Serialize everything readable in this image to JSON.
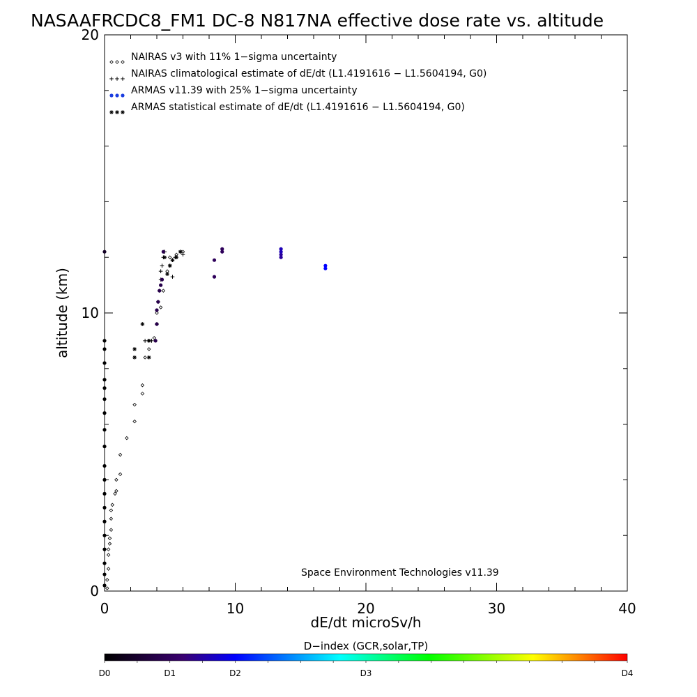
{
  "chart_data": {
    "type": "scatter",
    "title": "NASAAFRCDC8_FM1 DC-8   N817NA effective dose rate vs. altitude",
    "xlabel": "dE/dt microSv/h",
    "ylabel": "altitude (km)",
    "xlim": [
      0,
      40
    ],
    "ylim": [
      0,
      20
    ],
    "x_ticks": [
      "0",
      "10",
      "20",
      "30",
      "40"
    ],
    "y_ticks": [
      "0",
      "10",
      "20"
    ],
    "grid": false,
    "legend_position": "top-left",
    "annotation": "Space Environment Technologies v11.39",
    "colorbar": {
      "title": "D−index (GCR,solar,TP)",
      "labels": [
        "D0",
        "D1",
        "D2",
        "D3",
        "D4"
      ],
      "label_positions": [
        0,
        0.125,
        0.25,
        0.5,
        1.0
      ],
      "colors": [
        "#000000",
        "#3a0070",
        "#0000ff",
        "#00ffff",
        "#00ff00",
        "#ffff00",
        "#ff0000"
      ]
    },
    "series": [
      {
        "name": "NAIRAS v3 with 11% 1−sigma uncertainty",
        "marker": "diamond",
        "color": "#000000",
        "points": [
          [
            0.2,
            0.1
          ],
          [
            0.2,
            0.4
          ],
          [
            0.3,
            0.8
          ],
          [
            0.3,
            1.3
          ],
          [
            0.3,
            1.5
          ],
          [
            0.4,
            1.7
          ],
          [
            0.4,
            1.9
          ],
          [
            0.5,
            2.2
          ],
          [
            0.5,
            2.6
          ],
          [
            0.5,
            2.9
          ],
          [
            0.6,
            3.1
          ],
          [
            0.8,
            3.5
          ],
          [
            0.9,
            3.6
          ],
          [
            0.9,
            4.0
          ],
          [
            1.2,
            4.2
          ],
          [
            1.2,
            4.9
          ],
          [
            1.7,
            5.5
          ],
          [
            2.3,
            6.1
          ],
          [
            2.3,
            6.7
          ],
          [
            2.9,
            7.1
          ],
          [
            2.9,
            7.4
          ],
          [
            3.1,
            8.4
          ],
          [
            3.4,
            8.7
          ],
          [
            3.4,
            9.0
          ],
          [
            3.8,
            9.1
          ],
          [
            4.0,
            10.0
          ],
          [
            4.3,
            10.2
          ],
          [
            4.5,
            10.8
          ],
          [
            4.8,
            11.5
          ],
          [
            5.0,
            12.0
          ],
          [
            5.5,
            12.1
          ],
          [
            6.0,
            12.2
          ]
        ]
      },
      {
        "name": "NAIRAS climatological estimate of dE/dt (L1.4191616 − L1.5604194, G0)",
        "marker": "plus",
        "color": "#000000",
        "points": [
          [
            3.1,
            9.0
          ],
          [
            3.6,
            9.0
          ],
          [
            4.0,
            9.6
          ],
          [
            4.1,
            10.4
          ],
          [
            4.2,
            10.8
          ],
          [
            4.3,
            11.2
          ],
          [
            4.3,
            11.5
          ],
          [
            4.4,
            11.7
          ],
          [
            4.5,
            12.0
          ],
          [
            4.6,
            12.2
          ],
          [
            5.0,
            11.7
          ],
          [
            5.2,
            11.3
          ],
          [
            5.4,
            12.0
          ],
          [
            5.8,
            12.2
          ],
          [
            6.0,
            12.1
          ]
        ]
      },
      {
        "name": "ARMAS v11.39 with 25% 1−sigma uncertainty",
        "marker": "dot",
        "color": "#1a3de0",
        "points": [
          [
            0,
            0.2
          ],
          [
            0,
            0.6
          ],
          [
            0,
            1.0
          ],
          [
            0,
            1.5
          ],
          [
            0,
            2.0
          ],
          [
            0,
            2.5
          ],
          [
            0,
            3.0
          ],
          [
            0,
            3.5
          ],
          [
            0,
            4.0
          ],
          [
            0,
            4.5
          ],
          [
            0,
            5.2
          ],
          [
            0,
            5.8
          ],
          [
            0,
            6.4
          ],
          [
            0,
            6.9
          ],
          [
            0,
            7.3
          ],
          [
            0,
            7.6
          ],
          [
            0,
            8.2
          ],
          [
            0,
            8.7
          ],
          [
            0,
            9.0
          ],
          [
            0,
            12.2
          ],
          [
            3.9,
            9.0
          ],
          [
            4.0,
            9.6
          ],
          [
            4.0,
            10.1
          ],
          [
            4.1,
            10.4
          ],
          [
            4.2,
            10.8
          ],
          [
            4.3,
            11.0
          ],
          [
            4.4,
            11.2
          ],
          [
            4.5,
            12.2
          ],
          [
            8.4,
            11.3
          ],
          [
            8.4,
            11.9
          ],
          [
            9.0,
            12.2
          ],
          [
            9.0,
            12.3
          ],
          [
            13.5,
            12.0
          ],
          [
            13.5,
            12.1
          ],
          [
            13.5,
            12.2
          ],
          [
            13.5,
            12.3
          ],
          [
            16.9,
            11.6
          ],
          [
            16.9,
            11.7
          ]
        ],
        "d_index": [
          0,
          0,
          0,
          0,
          0,
          0,
          0,
          0,
          0,
          0,
          0,
          0,
          0,
          0,
          0,
          0,
          0,
          0,
          0,
          0.05,
          0.1,
          0.1,
          0.1,
          0.1,
          0.1,
          0.1,
          0.1,
          0.1,
          0.12,
          0.12,
          0.12,
          0.12,
          0.18,
          0.18,
          0.2,
          0.2,
          0.25,
          0.25
        ]
      },
      {
        "name": "ARMAS statistical estimate of dE/dt (L1.4191616 − L1.5604194, G0)",
        "marker": "asterisk",
        "color": "#000000",
        "points": [
          [
            2.3,
            8.4
          ],
          [
            2.3,
            8.7
          ],
          [
            2.9,
            9.6
          ],
          [
            3.4,
            8.4
          ],
          [
            3.4,
            9.0
          ],
          [
            4.6,
            12.0
          ],
          [
            4.8,
            11.4
          ],
          [
            5.0,
            11.7
          ],
          [
            5.2,
            11.9
          ],
          [
            5.5,
            12.0
          ],
          [
            5.8,
            12.2
          ]
        ]
      }
    ]
  }
}
